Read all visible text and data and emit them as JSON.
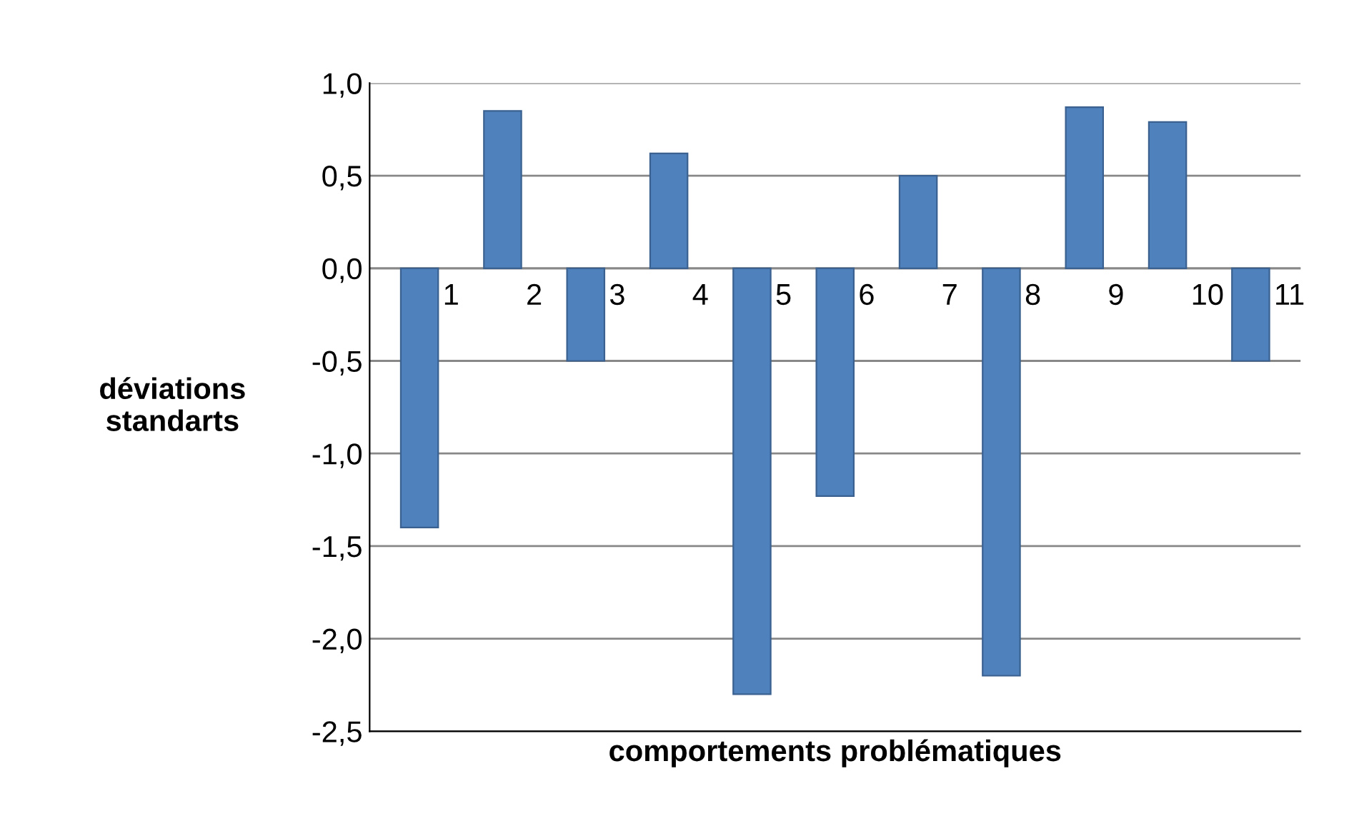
{
  "chart_data": {
    "type": "bar",
    "xlabel": "comportements problématiques",
    "ylabel": "déviations\nstandarts",
    "categories": [
      "1",
      "2",
      "3",
      "4",
      "5",
      "6",
      "7",
      "8",
      "9",
      "10",
      "11"
    ],
    "values": [
      -1.4,
      0.85,
      -0.5,
      0.62,
      -2.3,
      -1.23,
      0.5,
      -2.2,
      0.87,
      0.79,
      -0.5
    ],
    "color": "#4f81bd",
    "ylim": [
      -2.5,
      1.0
    ],
    "yticks": [
      {
        "value": -2.5,
        "label": "-2,5"
      },
      {
        "value": -2.0,
        "label": "-2,0"
      },
      {
        "value": -1.5,
        "label": "-1,5"
      },
      {
        "value": -1.0,
        "label": "-1,0"
      },
      {
        "value": -0.5,
        "label": "-0,5"
      },
      {
        "value": 0.0,
        "label": "0,0"
      },
      {
        "value": 0.5,
        "label": "0,5"
      },
      {
        "value": 1.0,
        "label": "1,0"
      }
    ],
    "grid": "y",
    "legend": false
  }
}
